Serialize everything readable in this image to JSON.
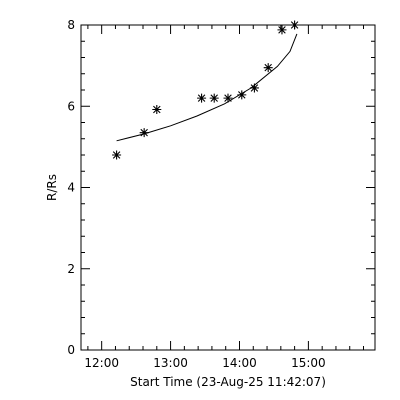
{
  "chart_data": {
    "type": "scatter",
    "xlabel": "Start Time (23-Aug-25 11:42:07)",
    "ylabel": "R/Rs",
    "xlim": [
      "11:42",
      "15:58"
    ],
    "ylim": [
      0,
      8
    ],
    "x_ticks": [
      "12:00",
      "13:00",
      "14:00",
      "15:00"
    ],
    "y_ticks": [
      "0",
      "2",
      "4",
      "6",
      "8"
    ],
    "grid": false,
    "legend": "none",
    "series": [
      {
        "marker": "asterisk",
        "points": [
          {
            "x": "12:13",
            "y": 4.8
          },
          {
            "x": "12:37",
            "y": 5.35
          },
          {
            "x": "12:48",
            "y": 5.92
          },
          {
            "x": "13:27",
            "y": 6.2
          },
          {
            "x": "13:38",
            "y": 6.2
          },
          {
            "x": "13:50",
            "y": 6.2
          },
          {
            "x": "14:02",
            "y": 6.28
          },
          {
            "x": "14:13",
            "y": 6.45
          },
          {
            "x": "14:25",
            "y": 6.95
          },
          {
            "x": "14:37",
            "y": 7.88
          },
          {
            "x": "14:48",
            "y": 8.0
          }
        ]
      }
    ],
    "fit_curve": {
      "style": "line",
      "points": [
        {
          "x": "12:13",
          "y": 5.15
        },
        {
          "x": "12:37",
          "y": 5.32
        },
        {
          "x": "13:00",
          "y": 5.52
        },
        {
          "x": "13:23",
          "y": 5.76
        },
        {
          "x": "13:47",
          "y": 6.06
        },
        {
          "x": "14:10",
          "y": 6.45
        },
        {
          "x": "14:33",
          "y": 6.98
        },
        {
          "x": "14:44",
          "y": 7.35
        },
        {
          "x": "14:50",
          "y": 7.78
        }
      ]
    },
    "colors": {
      "background": "#ffffff",
      "foreground": "#000000"
    }
  }
}
